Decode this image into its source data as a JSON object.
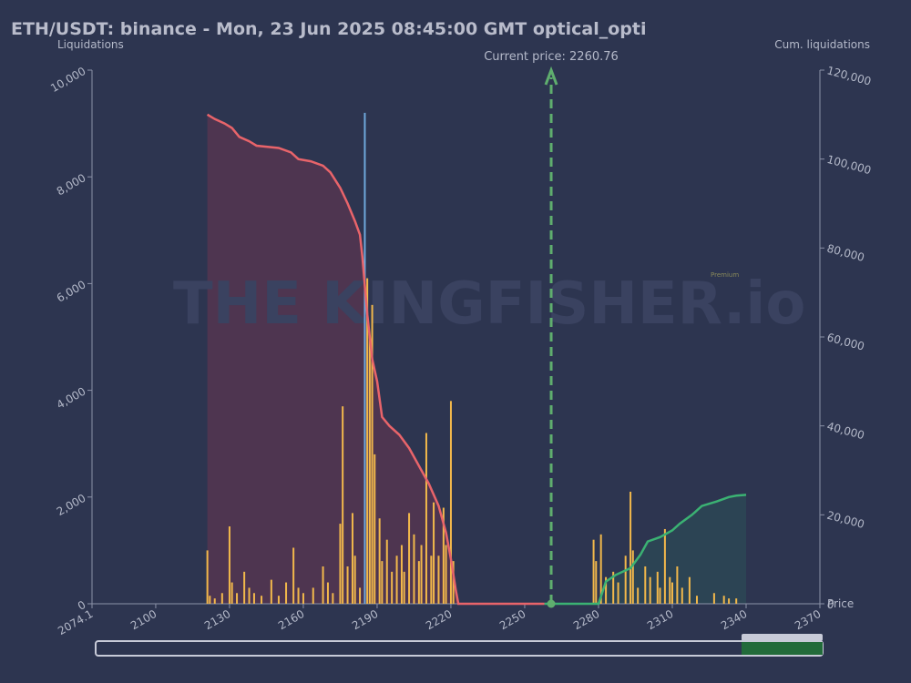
{
  "watermark": {
    "text": "THE KINGFISHER.io",
    "badge": "Premium"
  },
  "chart_data": {
    "type": "liquidation-map",
    "title": "ETH/USDT: binance - Mon, 23 Jun 2025 08:45:00 GMT optical_opti",
    "ylabel": "Liquidations",
    "y2label": "Cum. liquidations",
    "xlabel": "Price",
    "current_price_label": "Current price: 2260.76",
    "current_price": 2260.76,
    "xlim": [
      2074.1,
      2370
    ],
    "xticks": [
      2074.1,
      2100,
      2130,
      2160,
      2190,
      2220,
      2250,
      2280,
      2310,
      2340,
      2370
    ],
    "ylim": [
      0,
      10000
    ],
    "yticks": [
      0,
      {
        "value": 2000,
        "label": "2,000"
      },
      {
        "value": 4000,
        "label": "4,000"
      },
      {
        "value": 6000,
        "label": "6,000"
      },
      {
        "value": 8000,
        "label": "8,000"
      },
      {
        "value": 10000,
        "label": "10,000"
      }
    ],
    "y2lim": [
      0,
      120000
    ],
    "y2ticks": [
      0,
      {
        "value": 20000,
        "label": "20,000"
      },
      {
        "value": 40000,
        "label": "40,000"
      },
      {
        "value": 60000,
        "label": "60,000"
      },
      {
        "value": 80000,
        "label": "80,000"
      },
      {
        "value": 100000,
        "label": "100,000"
      },
      {
        "value": 120000,
        "label": "120,000"
      }
    ],
    "peak": {
      "x": 2185,
      "value": 9200,
      "color": "#6fa8dc"
    },
    "bars": {
      "color": "#f2b84b",
      "x": [
        2121,
        2122,
        2124,
        2127,
        2130,
        2131,
        2133,
        2136,
        2138,
        2140,
        2143,
        2147,
        2150,
        2153,
        2156,
        2158,
        2160,
        2164,
        2168,
        2170,
        2172,
        2175,
        2176,
        2178,
        2180,
        2181,
        2183,
        2186,
        2187,
        2188,
        2189,
        2191,
        2192,
        2194,
        2196,
        2198,
        2200,
        2201,
        2203,
        2205,
        2207,
        2208,
        2210,
        2212,
        2213,
        2215,
        2217,
        2218,
        2220,
        2221,
        2278,
        2279,
        2281,
        2283,
        2286,
        2288,
        2291,
        2293,
        2294,
        2296,
        2299,
        2301,
        2304,
        2305,
        2307,
        2309,
        2310,
        2312,
        2314,
        2317,
        2320,
        2327,
        2331,
        2333,
        2336
      ],
      "values": [
        1000,
        150,
        100,
        200,
        1450,
        400,
        200,
        600,
        300,
        200,
        150,
        450,
        150,
        400,
        1050,
        300,
        200,
        300,
        700,
        400,
        200,
        1500,
        3700,
        700,
        1700,
        900,
        300,
        6100,
        5000,
        5600,
        2800,
        1600,
        800,
        1200,
        600,
        900,
        1100,
        600,
        1700,
        1300,
        800,
        1100,
        3200,
        900,
        1900,
        900,
        1800,
        1100,
        3800,
        800,
        1200,
        800,
        1300,
        500,
        600,
        400,
        900,
        2100,
        1000,
        300,
        700,
        500,
        600,
        300,
        1400,
        500,
        400,
        700,
        300,
        500,
        150,
        200,
        150,
        100,
        100
      ]
    },
    "series": [
      {
        "color": "#e8646a",
        "fill": "#5a3550",
        "axis": "y2",
        "x": [
          2121,
          2124,
          2128,
          2131,
          2134,
          2138,
          2141,
          2150,
          2155,
          2158,
          2163,
          2168,
          2171,
          2175,
          2178,
          2181,
          2183,
          2184,
          2186,
          2188,
          2190,
          2192,
          2195,
          2199,
          2203,
          2207,
          2211,
          2215,
          2218,
          2220,
          2222,
          2223,
          2258
        ],
        "values": [
          110000,
          109000,
          108000,
          107000,
          105000,
          104000,
          103000,
          102500,
          101500,
          100000,
          99500,
          98500,
          97000,
          93500,
          90000,
          86000,
          83000,
          78000,
          65000,
          55000,
          50000,
          42000,
          40000,
          38000,
          35000,
          31000,
          27000,
          22000,
          16000,
          10000,
          3000,
          0,
          0
        ]
      },
      {
        "color": "#3bb273",
        "fill": "#2c4a55",
        "axis": "y2",
        "x": [
          2258,
          2280,
          2283,
          2287,
          2293,
          2297,
          2300,
          2305,
          2310,
          2313,
          2318,
          2322,
          2328,
          2333,
          2336,
          2340
        ],
        "values": [
          0,
          0,
          5000,
          6500,
          8000,
          11000,
          14000,
          15000,
          16500,
          18000,
          20000,
          22000,
          23000,
          24000,
          24300,
          24500
        ]
      }
    ]
  }
}
